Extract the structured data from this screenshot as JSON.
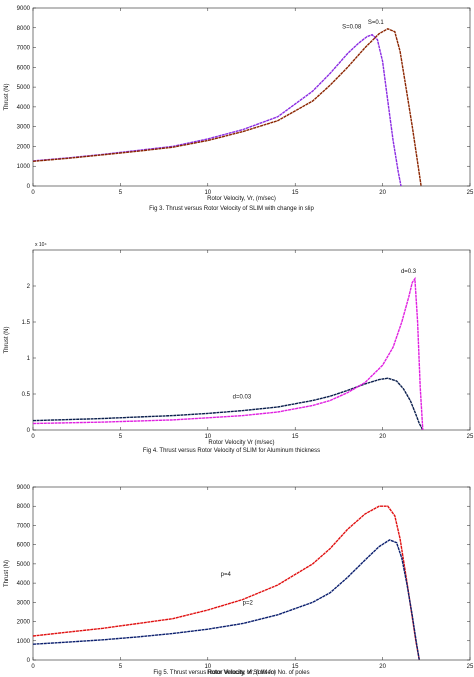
{
  "chart_data": [
    {
      "type": "line",
      "caption": "Fig 3. Thrust versus Rotor Velocity of SLIM with change in slip",
      "xlabel": "Rotor Velocity, Vr, (m/sec)",
      "ylabel": "Thrust (N)",
      "xlim": [
        0,
        25
      ],
      "ylim": [
        0,
        9000
      ],
      "xticks": [
        "0",
        "5",
        "10",
        "15",
        "20",
        "25"
      ],
      "yticks": [
        "0",
        "1000",
        "2000",
        "3000",
        "4000",
        "5000",
        "6000",
        "7000",
        "8000",
        "9000"
      ],
      "grid": false,
      "series": [
        {
          "name": "S=0.08",
          "color": "#8a2be2",
          "x": [
            0,
            2,
            4,
            6,
            8,
            10,
            12,
            14,
            16,
            17,
            18,
            18.6,
            19.1,
            19.4,
            19.7,
            20.0,
            20.3,
            20.6,
            20.9,
            21.05
          ],
          "y": [
            1270,
            1420,
            1600,
            1800,
            2000,
            2380,
            2850,
            3500,
            4800,
            5700,
            6700,
            7200,
            7550,
            7650,
            7400,
            6300,
            4300,
            2300,
            700,
            0
          ]
        },
        {
          "name": "S=0.1",
          "color": "#8b2500",
          "x": [
            0,
            2,
            4,
            6,
            8,
            10,
            12,
            14,
            16,
            17,
            18,
            19,
            19.8,
            20.3,
            20.7,
            21.0,
            21.3,
            21.7,
            22.0,
            22.2
          ],
          "y": [
            1250,
            1400,
            1580,
            1760,
            1960,
            2300,
            2750,
            3300,
            4300,
            5100,
            6000,
            7000,
            7700,
            7950,
            7800,
            6800,
            5200,
            3000,
            1200,
            0
          ]
        }
      ],
      "annotations": [
        "S=0.08",
        "S=0.1"
      ]
    },
    {
      "type": "line",
      "caption": "Fig 4. Thrust versus Rotor Velocity of SLIM for Aluminum thickness",
      "xlabel": "Rotor Velocity Vr (m/sec)",
      "ylabel": "Thrust (N)",
      "multiplier": "x 10⁴",
      "xlim": [
        0,
        25
      ],
      "ylim": [
        0,
        2.5
      ],
      "xticks": [
        "0",
        "5",
        "10",
        "15",
        "20",
        "25"
      ],
      "yticks": [
        "0",
        "0.5",
        "1",
        "1.5",
        "2"
      ],
      "grid": false,
      "series": [
        {
          "name": "d=0.03",
          "color": "#0b1f4d",
          "x": [
            0,
            2,
            4,
            6,
            8,
            10,
            12,
            14,
            16,
            17,
            18,
            19,
            19.8,
            20.3,
            20.8,
            21.2,
            21.6,
            21.9,
            22.1,
            22.3
          ],
          "y": [
            0.13,
            0.145,
            0.16,
            0.18,
            0.2,
            0.23,
            0.27,
            0.32,
            0.41,
            0.47,
            0.55,
            0.64,
            0.7,
            0.72,
            0.68,
            0.57,
            0.4,
            0.22,
            0.09,
            0
          ]
        },
        {
          "name": "d=0.3",
          "color": "#e020e0",
          "x": [
            0,
            2,
            4,
            6,
            8,
            10,
            12,
            14,
            16,
            17,
            18,
            19,
            20,
            20.6,
            21.1,
            21.5,
            21.7,
            21.85,
            22.0,
            22.15,
            22.3
          ],
          "y": [
            0.09,
            0.1,
            0.11,
            0.125,
            0.14,
            0.17,
            0.2,
            0.25,
            0.34,
            0.41,
            0.52,
            0.66,
            0.9,
            1.15,
            1.5,
            1.85,
            2.05,
            2.1,
            1.5,
            0.6,
            0
          ]
        }
      ],
      "annotations": [
        "d=0.03",
        "d=0.3"
      ]
    },
    {
      "type": "line",
      "caption": "Fig 5. Thrust versus Rotor Velocity of SLIM for No. of poles",
      "xlabel": "Rotor Velocity, Vr, (m/sec)",
      "ylabel": "Thrust (N)",
      "xlim": [
        0,
        25
      ],
      "ylim": [
        0,
        9000
      ],
      "xticks": [
        "0",
        "5",
        "10",
        "15",
        "20",
        "25"
      ],
      "yticks": [
        "0",
        "1000",
        "2000",
        "3000",
        "4000",
        "5000",
        "6000",
        "7000",
        "8000",
        "9000"
      ],
      "grid": false,
      "series": [
        {
          "name": "p=4",
          "color": "#e01010",
          "x": [
            0,
            2,
            4,
            6,
            8,
            10,
            12,
            14,
            16,
            17,
            18,
            19,
            19.8,
            20.3,
            20.7,
            21.0,
            21.3,
            21.6,
            21.9,
            22.1
          ],
          "y": [
            1250,
            1450,
            1650,
            1900,
            2150,
            2600,
            3150,
            3900,
            5000,
            5800,
            6800,
            7600,
            8000,
            8000,
            7500,
            6300,
            4600,
            2800,
            1000,
            0
          ]
        },
        {
          "name": "p=2",
          "color": "#0b1f6e",
          "x": [
            0,
            2,
            4,
            6,
            8,
            10,
            12,
            14,
            16,
            17,
            18,
            19,
            19.8,
            20.4,
            20.8,
            21.1,
            21.4,
            21.7,
            21.95,
            22.1
          ],
          "y": [
            820,
            930,
            1050,
            1200,
            1380,
            1600,
            1900,
            2350,
            3000,
            3500,
            4300,
            5200,
            5900,
            6250,
            6100,
            5300,
            3900,
            2300,
            800,
            0
          ]
        }
      ],
      "annotations": [
        "p=4",
        "p=2"
      ]
    }
  ]
}
